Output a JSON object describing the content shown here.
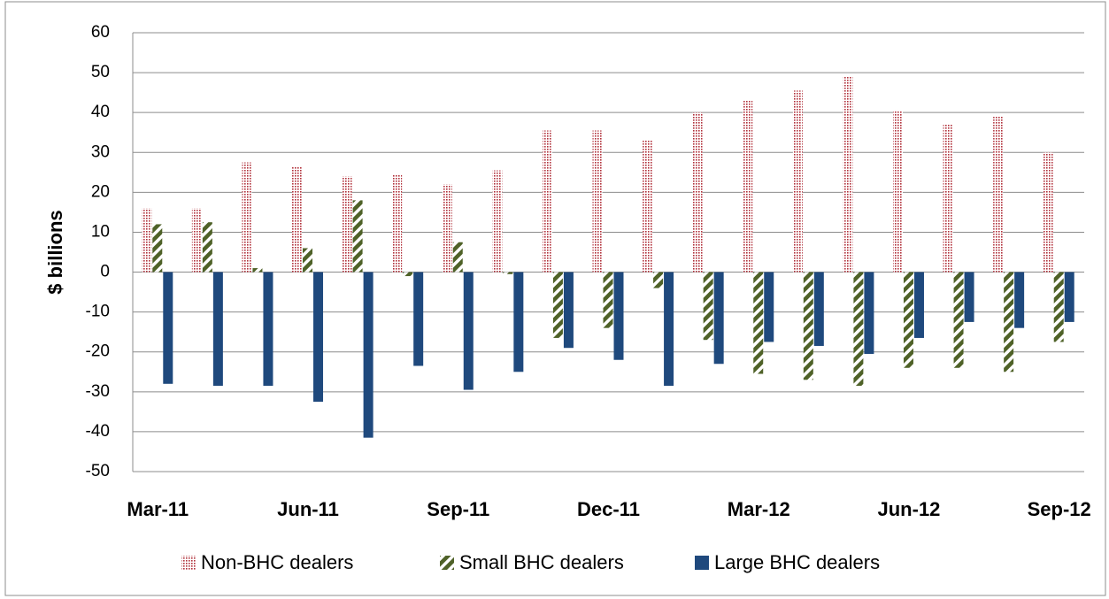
{
  "chart_data": {
    "type": "bar",
    "y_label": "$ billions",
    "categories": [
      "Mar-11",
      null,
      null,
      "Jun-11",
      null,
      null,
      "Sep-11",
      null,
      null,
      "Dec-11",
      null,
      null,
      "Mar-12",
      null,
      null,
      "Jun-12",
      null,
      null,
      "Sep-12"
    ],
    "series": [
      {
        "name": "Non-BHC dealers",
        "color": "#b0303a",
        "pattern": "dots",
        "values": [
          16,
          16,
          27.5,
          26.5,
          24,
          24.5,
          22,
          25.5,
          35.5,
          35.5,
          33,
          40,
          43,
          45.5,
          49,
          40.5,
          37,
          39,
          30
        ]
      },
      {
        "name": "Small BHC dealers",
        "color": "#4f6228",
        "pattern": "stripes",
        "values": [
          12,
          12.5,
          1,
          6,
          18,
          -1,
          7.5,
          -0.5,
          -16.5,
          -14,
          -4,
          -17,
          -25.5,
          -27,
          -28.5,
          -24,
          -24,
          -25,
          -17.5
        ]
      },
      {
        "name": "Large BHC dealers",
        "color": "#1f497d",
        "pattern": "solid",
        "values": [
          -28,
          -28.5,
          -28.5,
          -32.5,
          -41.5,
          -23.5,
          -29.5,
          -25,
          -19,
          -22,
          -28.5,
          -23,
          -17.5,
          -18.5,
          -20.5,
          -16.5,
          -12.5,
          -14,
          -12.5
        ]
      }
    ],
    "ylim": [
      -50,
      60
    ],
    "yticks": [
      -50,
      -40,
      -30,
      -20,
      -10,
      0,
      10,
      20,
      30,
      40,
      50,
      60
    ],
    "grid": true,
    "legend": "bottom"
  }
}
